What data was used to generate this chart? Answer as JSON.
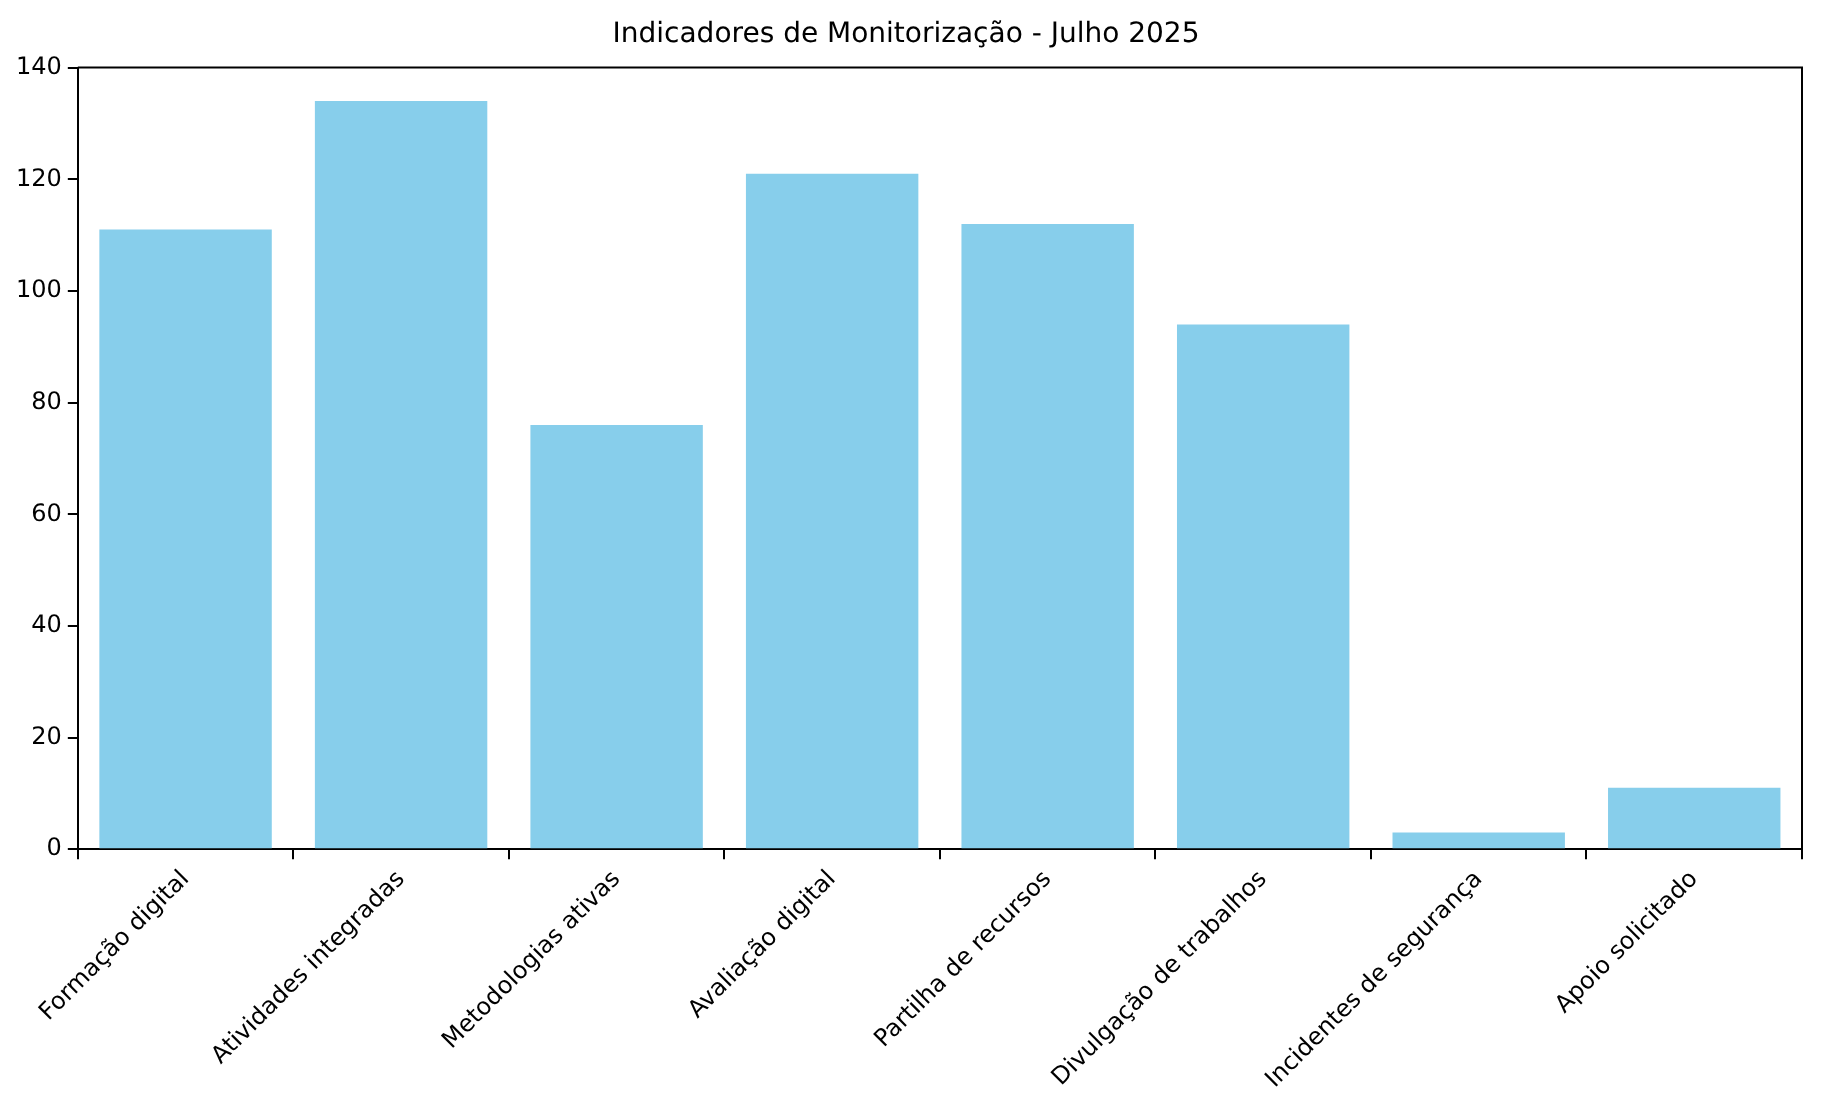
{
  "chart_data": {
    "type": "bar",
    "title": "Indicadores de Monitorização - Julho 2025",
    "categories": [
      "Formação digital",
      "Atividades integradas",
      "Metodologias ativas",
      "Avaliação digital",
      "Partilha de recursos",
      "Divulgação de trabalhos",
      "Incidentes de segurança",
      "Apoio solicitado"
    ],
    "values": [
      111,
      134,
      76,
      121,
      112,
      94,
      3,
      11
    ],
    "color": "#87ceeb",
    "ylim": [
      0,
      140
    ],
    "yticks": [
      0,
      20,
      40,
      60,
      80,
      100,
      120,
      140
    ]
  }
}
